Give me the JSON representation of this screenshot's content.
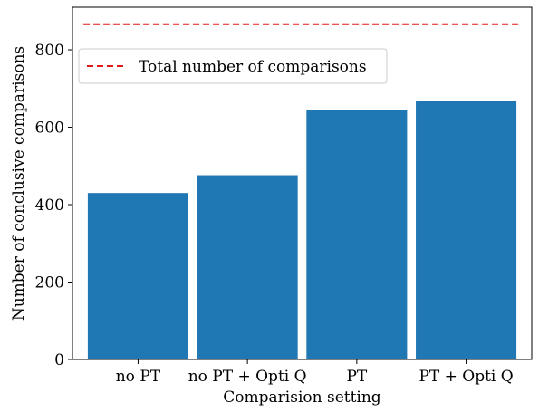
{
  "chart_data": {
    "type": "bar",
    "categories": [
      "no PT",
      "no PT + Opti Q",
      "PT",
      "PT + Opti Q"
    ],
    "series": [
      {
        "values": [
          430,
          476,
          645,
          667
        ],
        "color": "#1f77b4"
      }
    ],
    "reference_line": {
      "label": "Total number of comparisons",
      "value": 866,
      "color": "#e31a1c",
      "style": "dashed"
    },
    "xlabel": "Comparision setting",
    "ylabel": "Number of conclusive comparisons",
    "ylim": [
      0,
      910
    ],
    "yticks": [
      0,
      200,
      400,
      600,
      800
    ],
    "legend_position": "upper-left",
    "grid": false
  }
}
